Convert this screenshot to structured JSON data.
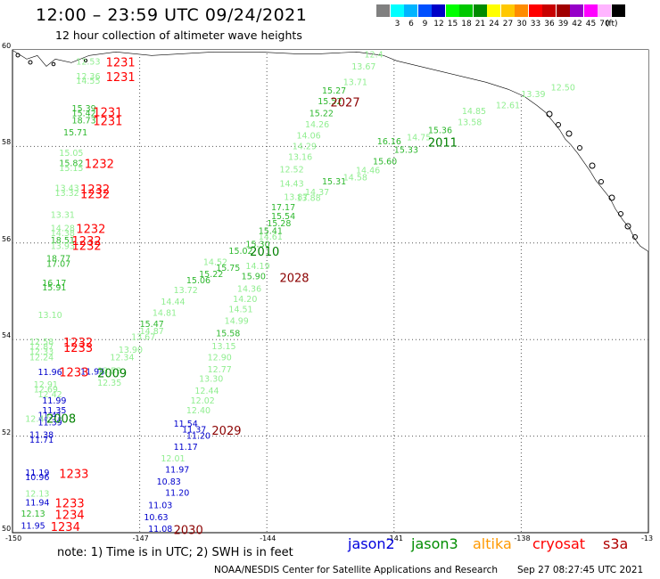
{
  "title": "12:00 – 23:59 UTC 09/24/2021",
  "subtitle": "12 hour collection of altimeter wave heights",
  "colorbar": {
    "unit": "(ft)",
    "swatches": [
      {
        "label": "",
        "color": "#808080"
      },
      {
        "label": "3",
        "color": "#00ffff"
      },
      {
        "label": "6",
        "color": "#00b4ff"
      },
      {
        "label": "9",
        "color": "#0050ff"
      },
      {
        "label": "12",
        "color": "#0000c8"
      },
      {
        "label": "15",
        "color": "#00ff00"
      },
      {
        "label": "18",
        "color": "#00c800"
      },
      {
        "label": "21",
        "color": "#008c00"
      },
      {
        "label": "24",
        "color": "#ffff00"
      },
      {
        "label": "27",
        "color": "#ffc800"
      },
      {
        "label": "30",
        "color": "#ff8c00"
      },
      {
        "label": "33",
        "color": "#ff0000"
      },
      {
        "label": "36",
        "color": "#c80000"
      },
      {
        "label": "39",
        "color": "#a00000"
      },
      {
        "label": "42",
        "color": "#9600c8"
      },
      {
        "label": "45",
        "color": "#ff00ff"
      },
      {
        "label": "70",
        "color": "#ffb4ff"
      },
      {
        "label": "",
        "color": "#000000"
      }
    ]
  },
  "map": {
    "lat_range": [
      50,
      60
    ],
    "lon_range": [
      -150,
      -135
    ],
    "lat_labels": [
      "60",
      "58",
      "56",
      "54",
      "52",
      "50"
    ],
    "lon_labels": [
      "-150",
      "-147",
      "-144",
      "-141",
      "-138",
      "-13"
    ]
  },
  "observations": [
    {
      "lon": -148.5,
      "lat": 59.75,
      "v": "12.53",
      "c": "#90ee90"
    },
    {
      "lon": -148.5,
      "lat": 59.45,
      "v": "12.36",
      "c": "#90ee90"
    },
    {
      "lon": -148.5,
      "lat": 59.35,
      "v": "14.55",
      "c": "#90ee90"
    },
    {
      "lon": -148.6,
      "lat": 58.78,
      "v": "15.39",
      "c": "#2eb82e"
    },
    {
      "lon": -148.6,
      "lat": 58.68,
      "v": "15.42",
      "c": "#2eb82e"
    },
    {
      "lon": -148.6,
      "lat": 58.53,
      "v": "18.73",
      "c": "#2eb82e"
    },
    {
      "lon": -148.8,
      "lat": 58.28,
      "v": "15.71",
      "c": "#2eb82e"
    },
    {
      "lon": -148.9,
      "lat": 57.86,
      "v": "15.05",
      "c": "#90ee90"
    },
    {
      "lon": -148.9,
      "lat": 57.65,
      "v": "15.82",
      "c": "#2eb82e"
    },
    {
      "lon": -148.9,
      "lat": 57.55,
      "v": "15.15",
      "c": "#90ee90"
    },
    {
      "lon": -149.0,
      "lat": 57.13,
      "v": "13.43",
      "c": "#90ee90"
    },
    {
      "lon": -149.0,
      "lat": 57.03,
      "v": "13.32",
      "c": "#90ee90"
    },
    {
      "lon": -149.1,
      "lat": 56.58,
      "v": "13.31",
      "c": "#90ee90"
    },
    {
      "lon": -149.1,
      "lat": 56.3,
      "v": "14.28",
      "c": "#90ee90"
    },
    {
      "lon": -149.1,
      "lat": 56.2,
      "v": "14.38",
      "c": "#90ee90"
    },
    {
      "lon": -149.1,
      "lat": 56.05,
      "v": "18.51",
      "c": "#2eb82e"
    },
    {
      "lon": -149.1,
      "lat": 55.93,
      "v": "13.93",
      "c": "#90ee90"
    },
    {
      "lon": -149.2,
      "lat": 55.67,
      "v": "18.77",
      "c": "#2eb82e"
    },
    {
      "lon": -149.2,
      "lat": 55.56,
      "v": "17.07",
      "c": "#2eb82e"
    },
    {
      "lon": -149.3,
      "lat": 55.17,
      "v": "16.17",
      "c": "#2eb82e"
    },
    {
      "lon": -149.3,
      "lat": 55.07,
      "v": "15.91",
      "c": "#2eb82e"
    },
    {
      "lon": -149.4,
      "lat": 54.5,
      "v": "13.10",
      "c": "#90ee90"
    },
    {
      "lon": -149.6,
      "lat": 53.95,
      "v": "12.58",
      "c": "#90ee90"
    },
    {
      "lon": -149.6,
      "lat": 53.85,
      "v": "12.87",
      "c": "#90ee90"
    },
    {
      "lon": -149.6,
      "lat": 53.75,
      "v": "12.33",
      "c": "#90ee90"
    },
    {
      "lon": -149.6,
      "lat": 53.63,
      "v": "12.24",
      "c": "#90ee90"
    },
    {
      "lon": -149.4,
      "lat": 53.32,
      "v": "11.96",
      "c": "#0000cc"
    },
    {
      "lon": -149.5,
      "lat": 53.06,
      "v": "12.91",
      "c": "#90ee90"
    },
    {
      "lon": -149.5,
      "lat": 52.96,
      "v": "12.69",
      "c": "#90ee90"
    },
    {
      "lon": -149.4,
      "lat": 52.86,
      "v": "12.42",
      "c": "#90ee90"
    },
    {
      "lon": -149.3,
      "lat": 52.73,
      "v": "11.99",
      "c": "#0000cc"
    },
    {
      "lon": -149.3,
      "lat": 52.53,
      "v": "11.35",
      "c": "#0000cc"
    },
    {
      "lon": -149.4,
      "lat": 52.43,
      "v": "11.41",
      "c": "#0000cc"
    },
    {
      "lon": -149.7,
      "lat": 52.35,
      "v": "12.47",
      "c": "#90ee90"
    },
    {
      "lon": -149.4,
      "lat": 52.28,
      "v": "11.39",
      "c": "#0000cc"
    },
    {
      "lon": -149.6,
      "lat": 52.02,
      "v": "11.38",
      "c": "#0000cc"
    },
    {
      "lon": -149.6,
      "lat": 51.92,
      "v": "11.71",
      "c": "#0000cc"
    },
    {
      "lon": -149.7,
      "lat": 51.24,
      "v": "11.19",
      "c": "#0000cc"
    },
    {
      "lon": -149.7,
      "lat": 51.14,
      "v": "10.96",
      "c": "#0000cc"
    },
    {
      "lon": -149.7,
      "lat": 50.8,
      "v": "12.13",
      "c": "#90ee90"
    },
    {
      "lon": -149.7,
      "lat": 50.62,
      "v": "11.94",
      "c": "#0000cc"
    },
    {
      "lon": -149.8,
      "lat": 50.39,
      "v": "12.13",
      "c": "#2eb82e"
    },
    {
      "lon": -149.8,
      "lat": 50.14,
      "v": "11.95",
      "c": "#0000cc"
    },
    {
      "lon": -148.4,
      "lat": 53.33,
      "v": "11.96",
      "c": "#0000cc"
    },
    {
      "lon": -146.8,
      "lat": 50.56,
      "v": "11.03",
      "c": "#0000cc"
    },
    {
      "lon": -146.9,
      "lat": 50.31,
      "v": "10.63",
      "c": "#0000cc"
    },
    {
      "lon": -146.8,
      "lat": 50.07,
      "v": "11.08",
      "c": "#0000cc"
    },
    {
      "lon": -146.4,
      "lat": 50.82,
      "v": "11.20",
      "c": "#0000cc"
    },
    {
      "lon": -146.6,
      "lat": 51.05,
      "v": "10.83",
      "c": "#0000cc"
    },
    {
      "lon": -146.4,
      "lat": 51.3,
      "v": "11.97",
      "c": "#0000cc"
    },
    {
      "lon": -146.5,
      "lat": 51.53,
      "v": "12.01",
      "c": "#90ee90"
    },
    {
      "lon": -146.2,
      "lat": 51.77,
      "v": "11.17",
      "c": "#0000cc"
    },
    {
      "lon": -145.9,
      "lat": 52.0,
      "v": "11.20",
      "c": "#0000cc"
    },
    {
      "lon": -146.0,
      "lat": 52.13,
      "v": "11.37",
      "c": "#0000cc"
    },
    {
      "lon": -146.2,
      "lat": 52.25,
      "v": "11.54",
      "c": "#0000cc"
    },
    {
      "lon": -145.9,
      "lat": 52.53,
      "v": "12.40",
      "c": "#90ee90"
    },
    {
      "lon": -145.8,
      "lat": 52.73,
      "v": "12.02",
      "c": "#90ee90"
    },
    {
      "lon": -145.7,
      "lat": 52.93,
      "v": "12.44",
      "c": "#90ee90"
    },
    {
      "lon": -145.6,
      "lat": 53.18,
      "v": "13.30",
      "c": "#90ee90"
    },
    {
      "lon": -145.4,
      "lat": 53.38,
      "v": "12.77",
      "c": "#90ee90"
    },
    {
      "lon": -145.4,
      "lat": 53.63,
      "v": "12.90",
      "c": "#90ee90"
    },
    {
      "lon": -145.3,
      "lat": 53.86,
      "v": "13.15",
      "c": "#90ee90"
    },
    {
      "lon": -145.2,
      "lat": 54.12,
      "v": "15.58",
      "c": "#2eb82e"
    },
    {
      "lon": -145.0,
      "lat": 54.38,
      "v": "14.99",
      "c": "#90ee90"
    },
    {
      "lon": -144.9,
      "lat": 54.62,
      "v": "14.51",
      "c": "#90ee90"
    },
    {
      "lon": -144.8,
      "lat": 54.83,
      "v": "14.20",
      "c": "#90ee90"
    },
    {
      "lon": -144.7,
      "lat": 55.05,
      "v": "14.36",
      "c": "#90ee90"
    },
    {
      "lon": -144.6,
      "lat": 55.3,
      "v": "15.90",
      "c": "#2eb82e"
    },
    {
      "lon": -144.5,
      "lat": 55.52,
      "v": "14.19",
      "c": "#90ee90"
    },
    {
      "lon": -148.0,
      "lat": 53.1,
      "v": "12.35",
      "c": "#90ee90"
    },
    {
      "lon": -148.0,
      "lat": 53.35,
      "v": "13.53",
      "c": "#90ee90"
    },
    {
      "lon": -147.7,
      "lat": 53.63,
      "v": "12.34",
      "c": "#90ee90"
    },
    {
      "lon": -147.5,
      "lat": 53.78,
      "v": "13.90",
      "c": "#90ee90"
    },
    {
      "lon": -147.2,
      "lat": 54.05,
      "v": "13.67",
      "c": "#90ee90"
    },
    {
      "lon": -147.0,
      "lat": 54.17,
      "v": "14.87",
      "c": "#90ee90"
    },
    {
      "lon": -147.0,
      "lat": 54.32,
      "v": "15.47",
      "c": "#2eb82e"
    },
    {
      "lon": -146.7,
      "lat": 54.55,
      "v": "14.81",
      "c": "#90ee90"
    },
    {
      "lon": -146.5,
      "lat": 54.78,
      "v": "14.44",
      "c": "#90ee90"
    },
    {
      "lon": -146.2,
      "lat": 55.02,
      "v": "13.72",
      "c": "#90ee90"
    },
    {
      "lon": -145.9,
      "lat": 55.22,
      "v": "15.06",
      "c": "#2eb82e"
    },
    {
      "lon": -145.6,
      "lat": 55.35,
      "v": "15.22",
      "c": "#2eb82e"
    },
    {
      "lon": -145.5,
      "lat": 55.6,
      "v": "14.52",
      "c": "#90ee90"
    },
    {
      "lon": -145.2,
      "lat": 55.48,
      "v": "15.75",
      "c": "#2eb82e"
    },
    {
      "lon": -144.9,
      "lat": 55.83,
      "v": "15.02",
      "c": "#2eb82e"
    },
    {
      "lon": -144.5,
      "lat": 55.97,
      "v": "15.30",
      "c": "#2eb82e"
    },
    {
      "lon": -144.2,
      "lat": 56.13,
      "v": "14.61",
      "c": "#90ee90"
    },
    {
      "lon": -144.2,
      "lat": 56.25,
      "v": "15.41",
      "c": "#2eb82e"
    },
    {
      "lon": -144.0,
      "lat": 56.4,
      "v": "15.28",
      "c": "#2eb82e"
    },
    {
      "lon": -143.9,
      "lat": 56.55,
      "v": "15.54",
      "c": "#2eb82e"
    },
    {
      "lon": -143.9,
      "lat": 56.73,
      "v": "17.17",
      "c": "#2eb82e"
    },
    {
      "lon": -143.6,
      "lat": 56.95,
      "v": "13.87",
      "c": "#90ee90"
    },
    {
      "lon": -143.7,
      "lat": 57.22,
      "v": "14.43",
      "c": "#90ee90"
    },
    {
      "lon": -143.7,
      "lat": 57.52,
      "v": "12.52",
      "c": "#90ee90"
    },
    {
      "lon": -143.5,
      "lat": 57.78,
      "v": "13.16",
      "c": "#90ee90"
    },
    {
      "lon": -143.4,
      "lat": 58.0,
      "v": "14.29",
      "c": "#90ee90"
    },
    {
      "lon": -143.3,
      "lat": 58.22,
      "v": "14.06",
      "c": "#90ee90"
    },
    {
      "lon": -143.1,
      "lat": 58.45,
      "v": "14.26",
      "c": "#90ee90"
    },
    {
      "lon": -143.0,
      "lat": 58.68,
      "v": "15.22",
      "c": "#2eb82e"
    },
    {
      "lon": -142.8,
      "lat": 58.93,
      "v": "15.52",
      "c": "#2eb82e"
    },
    {
      "lon": -142.7,
      "lat": 59.15,
      "v": "15.27",
      "c": "#2eb82e"
    },
    {
      "lon": -142.2,
      "lat": 59.33,
      "v": "13.71",
      "c": "#90ee90"
    },
    {
      "lon": -142.0,
      "lat": 59.65,
      "v": "13.67",
      "c": "#90ee90"
    },
    {
      "lon": -141.7,
      "lat": 59.9,
      "v": "12.4",
      "c": "#90ee90"
    },
    {
      "lon": -143.3,
      "lat": 56.93,
      "v": "13.88",
      "c": "#90ee90"
    },
    {
      "lon": -143.1,
      "lat": 57.05,
      "v": "14.37",
      "c": "#90ee90"
    },
    {
      "lon": -142.7,
      "lat": 57.27,
      "v": "15.31",
      "c": "#2eb82e"
    },
    {
      "lon": -142.2,
      "lat": 57.35,
      "v": "14.58",
      "c": "#90ee90"
    },
    {
      "lon": -141.9,
      "lat": 57.5,
      "v": "14.46",
      "c": "#90ee90"
    },
    {
      "lon": -141.5,
      "lat": 57.68,
      "v": "15.60",
      "c": "#2eb82e"
    },
    {
      "lon": -141.0,
      "lat": 57.92,
      "v": "15.33",
      "c": "#2eb82e"
    },
    {
      "lon": -141.4,
      "lat": 58.1,
      "v": "16.16",
      "c": "#2eb82e"
    },
    {
      "lon": -140.7,
      "lat": 58.18,
      "v": "14.75",
      "c": "#90ee90"
    },
    {
      "lon": -140.2,
      "lat": 58.33,
      "v": "15.36",
      "c": "#2eb82e"
    },
    {
      "lon": -139.5,
      "lat": 58.5,
      "v": "13.58",
      "c": "#90ee90"
    },
    {
      "lon": -139.4,
      "lat": 58.73,
      "v": "14.85",
      "c": "#90ee90"
    },
    {
      "lon": -138.6,
      "lat": 58.85,
      "v": "12.61",
      "c": "#90ee90"
    },
    {
      "lon": -138.0,
      "lat": 59.08,
      "v": "13.39",
      "c": "#90ee90"
    },
    {
      "lon": -137.3,
      "lat": 59.22,
      "v": "12.50",
      "c": "#90ee90"
    }
  ],
  "track_labels": [
    {
      "lon": -147.8,
      "lat": 59.75,
      "v": "1231",
      "c": "#ff0000"
    },
    {
      "lon": -147.8,
      "lat": 59.45,
      "v": "1231",
      "c": "#ff0000"
    },
    {
      "lon": -148.1,
      "lat": 58.72,
      "v": "1231",
      "c": "#ff0000"
    },
    {
      "lon": -148.1,
      "lat": 58.53,
      "v": "1231",
      "c": "#ff0000"
    },
    {
      "lon": -148.3,
      "lat": 57.65,
      "v": "1232",
      "c": "#ff0000"
    },
    {
      "lon": -148.4,
      "lat": 57.12,
      "v": "1232",
      "c": "#ff0000"
    },
    {
      "lon": -148.4,
      "lat": 57.02,
      "v": "1232",
      "c": "#ff0000"
    },
    {
      "lon": -148.5,
      "lat": 56.3,
      "v": "1232",
      "c": "#ff0000"
    },
    {
      "lon": -148.6,
      "lat": 56.05,
      "v": "1232",
      "c": "#ff0000"
    },
    {
      "lon": -148.6,
      "lat": 55.95,
      "v": "1232",
      "c": "#ff0000"
    },
    {
      "lon": -148.8,
      "lat": 53.95,
      "v": "1232",
      "c": "#ff0000"
    },
    {
      "lon": -148.8,
      "lat": 53.84,
      "v": "1233",
      "c": "#ff0000"
    },
    {
      "lon": -148.9,
      "lat": 53.33,
      "v": "1233",
      "c": "#ff0000"
    },
    {
      "lon": -148.9,
      "lat": 51.23,
      "v": "1233",
      "c": "#ff0000"
    },
    {
      "lon": -149.0,
      "lat": 50.62,
      "v": "1233",
      "c": "#ff0000"
    },
    {
      "lon": -149.0,
      "lat": 50.38,
      "v": "1234",
      "c": "#ff0000"
    },
    {
      "lon": -149.1,
      "lat": 50.13,
      "v": "1234",
      "c": "#ff0000"
    },
    {
      "lon": -142.5,
      "lat": 58.92,
      "v": "2027",
      "c": "#8b0000"
    },
    {
      "lon": -143.7,
      "lat": 55.29,
      "v": "2028",
      "c": "#8b0000"
    },
    {
      "lon": -145.3,
      "lat": 52.12,
      "v": "2029",
      "c": "#8b0000"
    },
    {
      "lon": -146.2,
      "lat": 50.06,
      "v": "2030",
      "c": "#8b0000"
    },
    {
      "lon": -140.2,
      "lat": 58.09,
      "v": "2011",
      "c": "#008000"
    },
    {
      "lon": -144.4,
      "lat": 55.83,
      "v": "2010",
      "c": "#008000"
    },
    {
      "lon": -148.0,
      "lat": 53.31,
      "v": "2009",
      "c": "#008000"
    },
    {
      "lon": -149.2,
      "lat": 52.37,
      "v": "2008",
      "c": "#008000"
    }
  ],
  "note": "note: 1) Time is in UTC; 2) SWH is in feet",
  "satellites": [
    {
      "name": "jason2",
      "color": "#0000dd"
    },
    {
      "name": "jason3",
      "color": "#008c00"
    },
    {
      "name": "altika",
      "color": "#ff9900"
    },
    {
      "name": "cryosat",
      "color": "#ff0000"
    },
    {
      "name": "s3a",
      "color": "#b00000"
    }
  ],
  "credit": "NOAA/NESDIS Center for Satellite Applications and Research",
  "timestamp": "Sep 27 08:27:45 UTC 2021"
}
